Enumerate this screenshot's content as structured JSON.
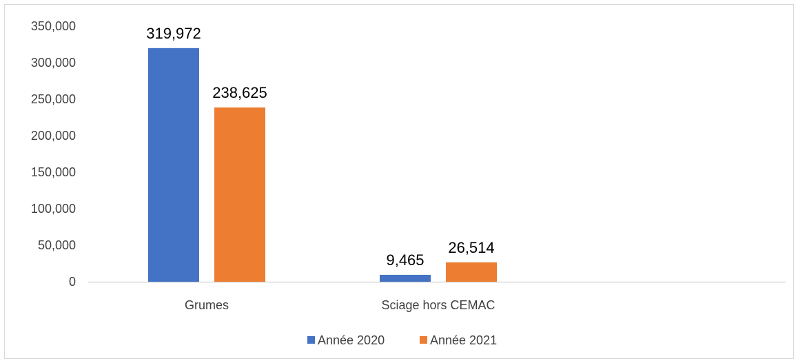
{
  "chart_data": {
    "type": "bar",
    "title": "",
    "xlabel": "",
    "ylabel": "",
    "categories": [
      "Grumes",
      "Sciage hors CEMAC"
    ],
    "series": [
      {
        "name": "Année 2020",
        "color": "#4472c4",
        "values": [
          319972,
          9465
        ],
        "labels": [
          "319,972",
          "9,465"
        ]
      },
      {
        "name": "Année 2021",
        "color": "#ed7d31",
        "values": [
          238625,
          26514
        ],
        "labels": [
          "238,625",
          "26,514"
        ]
      }
    ],
    "ylim": [
      0,
      350000
    ],
    "yticks": [
      0,
      50000,
      100000,
      150000,
      200000,
      250000,
      300000,
      350000
    ],
    "ytick_labels": [
      "0",
      "50,000",
      "100,000",
      "150,000",
      "200,000",
      "250,000",
      "300,000",
      "350,000"
    ],
    "grid": false,
    "legend_position": "bottom"
  }
}
